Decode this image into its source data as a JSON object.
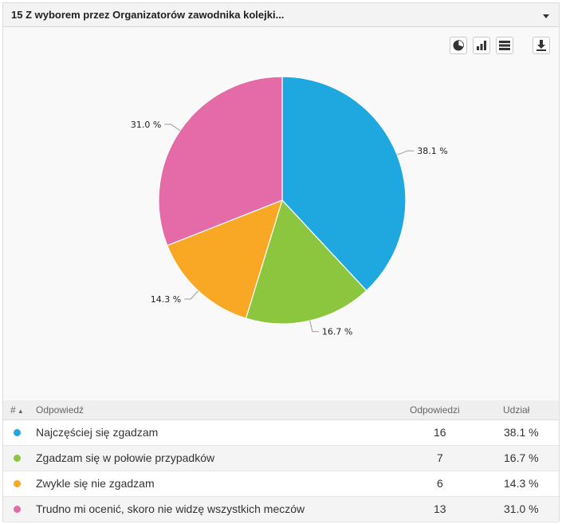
{
  "header": {
    "title": "15 Z wyborem przez Organizatorów zawodnika kolejki..."
  },
  "toolbar": {
    "icons": [
      "pie-chart-icon",
      "bar-chart-icon",
      "table-icon",
      "download-icon"
    ]
  },
  "chart_data": {
    "type": "pie",
    "categories": [
      "Najczęściej się zgadzam",
      "Zgadzam się w połowie przypadków",
      "Zwykle się nie zgadzam",
      "Trudno mi ocenić, skoro nie widzę wszystkich meczów"
    ],
    "values": [
      38.1,
      16.7,
      14.3,
      31.0
    ],
    "labels": [
      "38.1 %",
      "16.7 %",
      "14.3 %",
      "31.0 %"
    ],
    "colors": [
      "#1fa8e0",
      "#8cc63f",
      "#f9a825",
      "#e46ba8"
    ]
  },
  "table": {
    "headers": {
      "num": "#",
      "answer": "Odpowiedź",
      "count": "Odpowiedzi",
      "share": "Udział"
    },
    "rows": [
      {
        "answer": "Najczęściej się zgadzam",
        "count": "16",
        "share": "38.1 %",
        "color": "#1fa8e0"
      },
      {
        "answer": "Zgadzam się w połowie przypadków",
        "count": "7",
        "share": "16.7 %",
        "color": "#8cc63f"
      },
      {
        "answer": "Zwykle się nie zgadzam",
        "count": "6",
        "share": "14.3 %",
        "color": "#f9a825"
      },
      {
        "answer": "Trudno mi ocenić, skoro nie widzę wszystkich meczów",
        "count": "13",
        "share": "31.0 %",
        "color": "#e46ba8"
      }
    ]
  }
}
